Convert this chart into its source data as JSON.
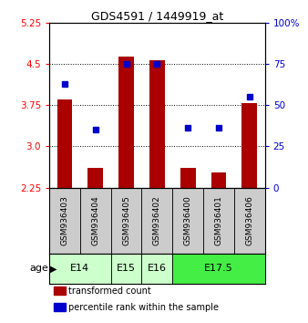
{
  "title": "GDS4591 / 1449919_at",
  "samples": [
    "GSM936403",
    "GSM936404",
    "GSM936405",
    "GSM936402",
    "GSM936400",
    "GSM936401",
    "GSM936406"
  ],
  "transformed_counts": [
    3.85,
    2.6,
    4.63,
    4.57,
    2.6,
    2.53,
    3.78
  ],
  "percentile_ranks": [
    63,
    35,
    75,
    75,
    36,
    36,
    55
  ],
  "age_groups": [
    {
      "label": "E14",
      "samples": [
        "GSM936403",
        "GSM936404"
      ],
      "color": "#ccffcc"
    },
    {
      "label": "E15",
      "samples": [
        "GSM936405"
      ],
      "color": "#ccffcc"
    },
    {
      "label": "E16",
      "samples": [
        "GSM936402"
      ],
      "color": "#ccffcc"
    },
    {
      "label": "E17.5",
      "samples": [
        "GSM936400",
        "GSM936401",
        "GSM936406"
      ],
      "color": "#44ee44"
    }
  ],
  "ylim_left": [
    2.25,
    5.25
  ],
  "ylim_right": [
    0,
    100
  ],
  "yticks_left": [
    2.25,
    3.0,
    3.75,
    4.5,
    5.25
  ],
  "yticks_right": [
    0,
    25,
    50,
    75,
    100
  ],
  "ytick_right_labels": [
    "0",
    "25",
    "50",
    "75",
    "100%"
  ],
  "bar_color": "#aa0000",
  "dot_color": "#0000cc",
  "bar_width": 0.5,
  "gridline_y": [
    3.0,
    3.75,
    4.5
  ],
  "sample_box_color": "#cccccc",
  "legend_items": [
    {
      "color": "#aa0000",
      "label": "transformed count"
    },
    {
      "color": "#0000cc",
      "label": "percentile rank within the sample"
    }
  ]
}
